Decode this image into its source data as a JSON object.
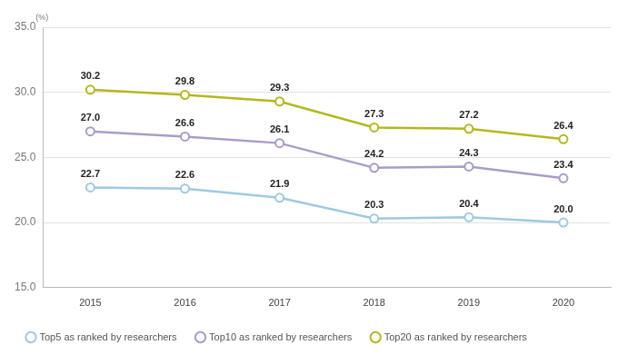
{
  "chart_data": {
    "type": "line",
    "ylabel": "(%)",
    "categories": [
      "2015",
      "2016",
      "2017",
      "2018",
      "2019",
      "2020"
    ],
    "series": [
      {
        "name": "Top5 as ranked by researchers",
        "color": "#9ecae1",
        "marker": "circle",
        "values": [
          22.7,
          22.6,
          21.9,
          20.3,
          20.4,
          20.0
        ],
        "value_labels": [
          "22.7",
          "22.6",
          "21.9",
          "20.3",
          "20.4",
          "20.0"
        ]
      },
      {
        "name": "Top10 as ranked by researchers",
        "color": "#a99cc8",
        "marker": "circle",
        "values": [
          27.0,
          26.6,
          26.1,
          24.2,
          24.3,
          23.4
        ],
        "value_labels": [
          "27.0",
          "26.6",
          "26.1",
          "24.2",
          "24.3",
          "23.4"
        ]
      },
      {
        "name": "Top20 as ranked by researchers",
        "color": "#b3b81c",
        "marker": "circle",
        "values": [
          30.2,
          29.8,
          29.3,
          27.3,
          27.2,
          26.4
        ],
        "value_labels": [
          "30.2",
          "29.8",
          "29.3",
          "27.3",
          "27.2",
          "26.4"
        ]
      }
    ],
    "ylim": [
      15,
      35
    ],
    "yticks": [
      {
        "value": 15,
        "label": "15.0"
      },
      {
        "value": 20,
        "label": "20.0"
      },
      {
        "value": 25,
        "label": "25.0"
      },
      {
        "value": 30,
        "label": "30.0"
      },
      {
        "value": 35,
        "label": "35.0"
      }
    ],
    "grid": true,
    "legend": "bottom",
    "data_labels": true
  }
}
